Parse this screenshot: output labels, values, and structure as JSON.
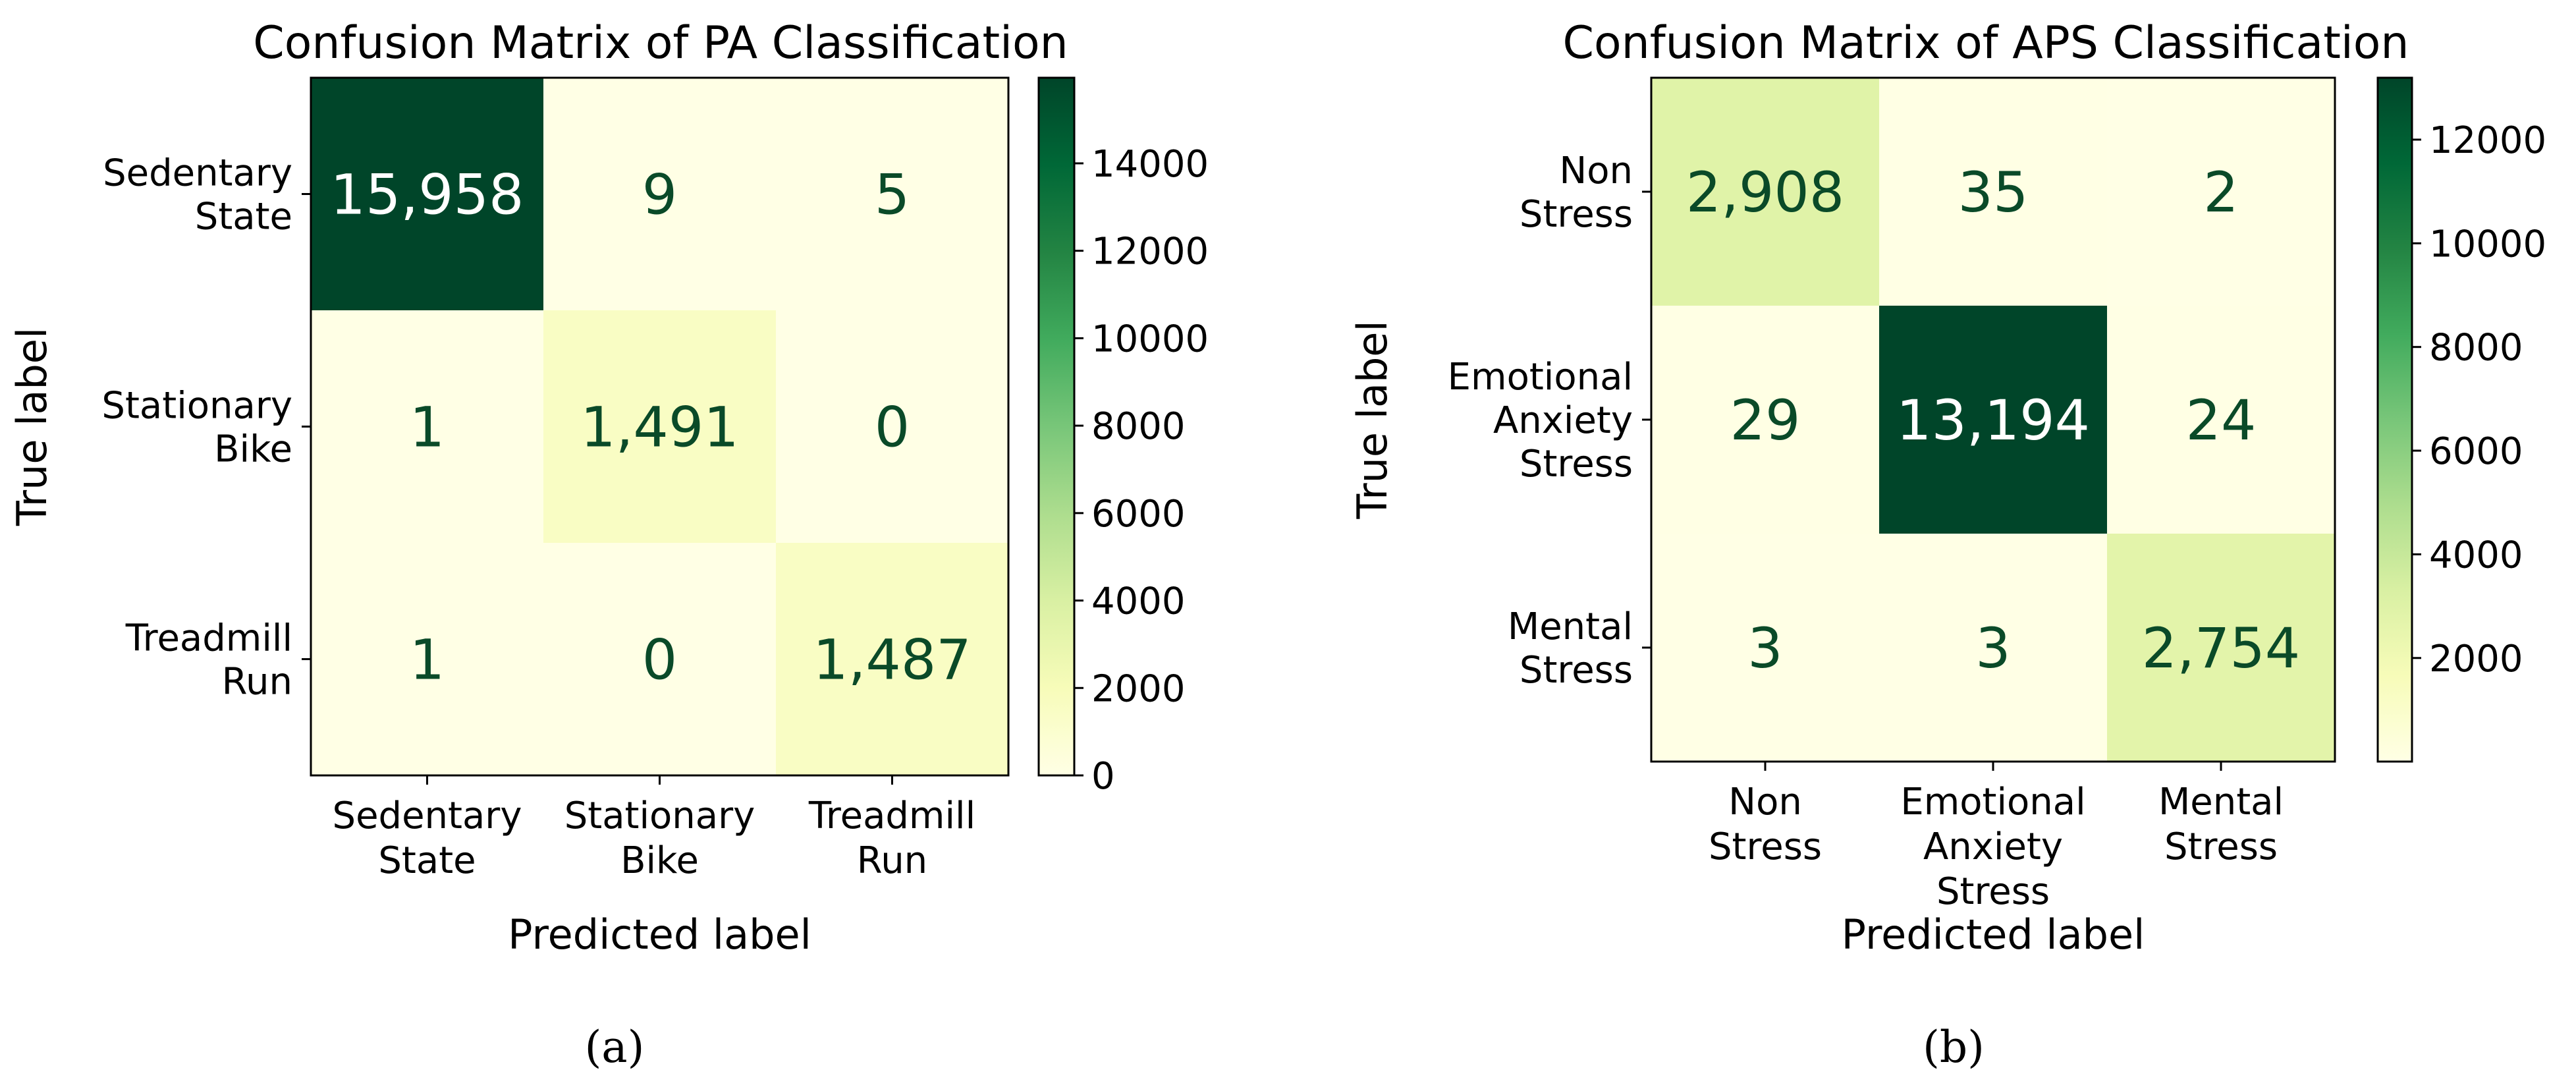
{
  "chart_data": [
    {
      "type": "heatmap",
      "id": "a",
      "title": "Confusion Matrix of PA Classification",
      "xlabel": "Predicted label",
      "ylabel": "True label",
      "row_labels": [
        [
          "Sedentary",
          "State"
        ],
        [
          "Stationary",
          "Bike"
        ],
        [
          "Treadmill",
          "Run"
        ]
      ],
      "col_labels": [
        [
          "Sedentary",
          "State"
        ],
        [
          "Stationary",
          "Bike"
        ],
        [
          "Treadmill",
          "Run"
        ]
      ],
      "values": [
        [
          15958,
          9,
          5
        ],
        [
          1,
          1491,
          0
        ],
        [
          1,
          0,
          1487
        ]
      ],
      "value_labels": [
        [
          "15,958",
          "9",
          "5"
        ],
        [
          "1",
          "1,491",
          "0"
        ],
        [
          "1",
          "0",
          "1,487"
        ]
      ],
      "colormap": "YlGn",
      "color_range": [
        0,
        15958
      ],
      "colorbar_ticks": [
        0,
        2000,
        4000,
        6000,
        8000,
        10000,
        12000,
        14000
      ],
      "caption": "(a)"
    },
    {
      "type": "heatmap",
      "id": "b",
      "title": "Confusion Matrix of APS Classification",
      "xlabel": "Predicted label",
      "ylabel": "True label",
      "row_labels": [
        [
          "Non",
          "Stress"
        ],
        [
          "Emotional",
          "Anxiety",
          "Stress"
        ],
        [
          "Mental",
          "Stress"
        ]
      ],
      "col_labels": [
        [
          "Non",
          "Stress"
        ],
        [
          "Emotional",
          "Anxiety",
          "Stress"
        ],
        [
          "Mental",
          "Stress"
        ]
      ],
      "values": [
        [
          2908,
          35,
          2
        ],
        [
          29,
          13194,
          24
        ],
        [
          3,
          3,
          2754
        ]
      ],
      "value_labels": [
        [
          "2,908",
          "35",
          "2"
        ],
        [
          "29",
          "13,194",
          "24"
        ],
        [
          "3",
          "3",
          "2,754"
        ]
      ],
      "colormap": "YlGn",
      "color_range": [
        2,
        13194
      ],
      "colorbar_ticks": [
        2000,
        4000,
        6000,
        8000,
        10000,
        12000
      ],
      "caption": "(b)"
    }
  ],
  "colors": {
    "text": "#000000",
    "dark_text": "#0a4a28",
    "light_text": "#ffffff",
    "ylgn_stops": [
      "#ffffe5",
      "#f7fcb9",
      "#d9f0a3",
      "#addd8e",
      "#78c679",
      "#41ab5d",
      "#238443",
      "#006837",
      "#004529"
    ]
  }
}
